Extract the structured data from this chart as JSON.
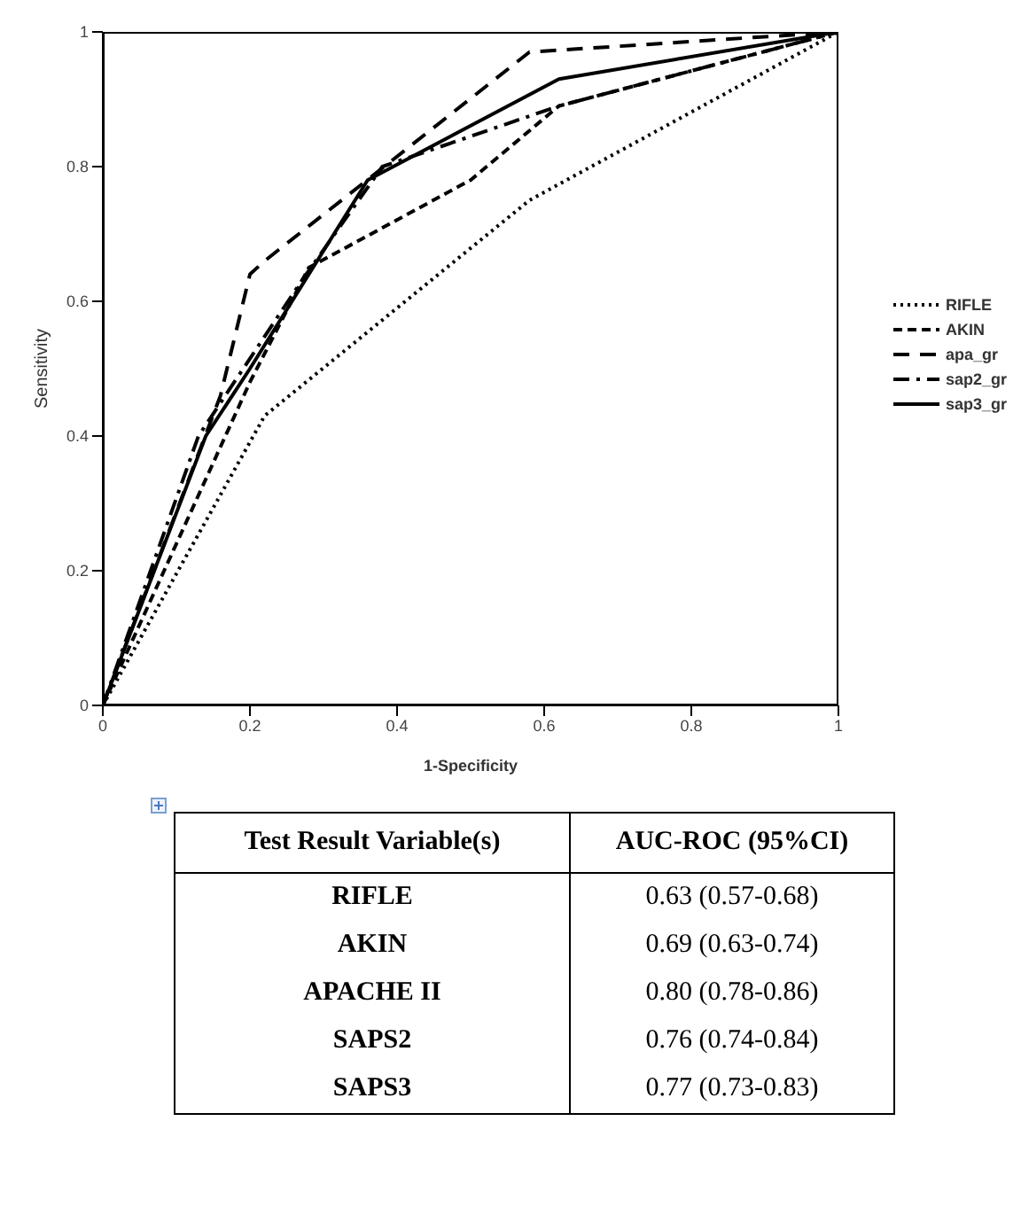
{
  "chart_data": {
    "type": "line",
    "xlabel": "1-Specificity",
    "ylabel": "Sensitivity",
    "xlim": [
      0,
      1
    ],
    "ylim": [
      0,
      1
    ],
    "xticks": [
      0,
      0.2,
      0.4,
      0.6,
      0.8,
      1
    ],
    "yticks": [
      0,
      0.2,
      0.4,
      0.6,
      0.8,
      1
    ],
    "grid": false,
    "legend": "right",
    "marker": "none",
    "series": [
      {
        "name": "RIFLE",
        "color": "#000000",
        "line_style": "dotted",
        "x": [
          0,
          0.22,
          0.58,
          1
        ],
        "values": [
          0,
          0.43,
          0.75,
          1
        ]
      },
      {
        "name": "AKIN",
        "color": "#000000",
        "line_style": "dashed",
        "x": [
          0,
          0.2,
          0.28,
          0.5,
          0.62,
          1
        ],
        "values": [
          0,
          0.48,
          0.65,
          0.78,
          0.89,
          1
        ]
      },
      {
        "name": "apa_gr",
        "color": "#000000",
        "line_style": "longdashed",
        "x": [
          0,
          0.16,
          0.2,
          0.22,
          0.58,
          1
        ],
        "values": [
          0,
          0.46,
          0.64,
          0.66,
          0.97,
          1
        ]
      },
      {
        "name": "sap2_gr",
        "color": "#000000",
        "line_style": "dashdot",
        "x": [
          0,
          0.13,
          0.27,
          0.38,
          0.62,
          1
        ],
        "values": [
          0,
          0.4,
          0.63,
          0.8,
          0.89,
          1
        ]
      },
      {
        "name": "sap3_gr",
        "color": "#000000",
        "line_style": "solid",
        "x": [
          0,
          0.14,
          0.2,
          0.36,
          0.62,
          1
        ],
        "values": [
          0,
          0.4,
          0.5,
          0.78,
          0.93,
          1
        ]
      }
    ],
    "annotations": [
      "Test Result Variable(s)",
      "AUC-ROC (95%CI)",
      "RIFLE",
      "0.63 (0.57-0.68)",
      "AKIN",
      "0.69 (0.63-0.74)",
      "APACHE II",
      "0.80 (0.78-0.86)",
      "SAPS2",
      "0.76 (0.74-0.84)",
      "SAPS3",
      "0.77 (0.73-0.83)"
    ]
  }
}
